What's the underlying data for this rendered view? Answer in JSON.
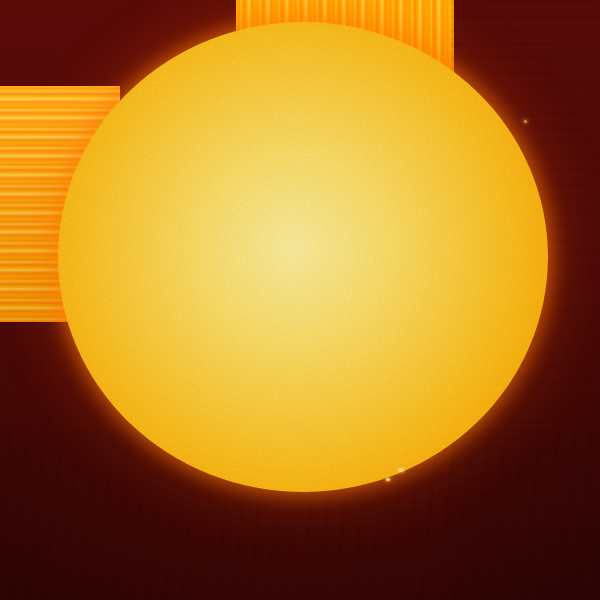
{
  "scene": {
    "subject-icon": "sun-icon",
    "colors": {
      "background_dark": "#3a0606",
      "background_red": "#5a0b08",
      "streak_orange": "#ff9a00",
      "sun_core": "#fff1a0",
      "sun_mid": "#ffc21e",
      "sun_limb": "#f07a00"
    }
  }
}
